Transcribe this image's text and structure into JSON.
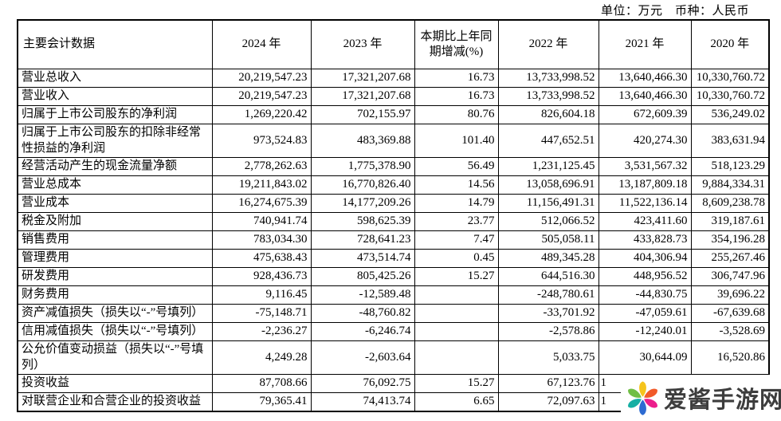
{
  "page": {
    "unit_line": "单位：万元　币种：人民币"
  },
  "table": {
    "header": [
      "主要会计数据",
      "2024 年",
      "2023 年",
      "本期比上年同期增减(%)",
      "2022 年",
      "2021 年",
      "2020 年"
    ],
    "rows": [
      {
        "label": "营业总收入",
        "values": [
          "20,219,547.23",
          "17,321,207.68",
          "16.73",
          "13,733,998.52",
          "13,640,466.30",
          "10,330,760.72"
        ]
      },
      {
        "label": "营业收入",
        "values": [
          "20,219,547.23",
          "17,321,207.68",
          "16.73",
          "13,733,998.52",
          "13,640,466.30",
          "10,330,760.72"
        ]
      },
      {
        "label": "归属于上市公司股东的净利润",
        "values": [
          "1,269,220.42",
          "702,155.97",
          "80.76",
          "826,604.18",
          "672,609.39",
          "536,249.02"
        ]
      },
      {
        "label": "归属于上市公司股东的扣除非经常性损益的净利润",
        "values": [
          "973,524.83",
          "483,369.88",
          "101.40",
          "447,652.51",
          "420,274.30",
          "383,631.94"
        ]
      },
      {
        "label": "经营活动产生的现金流量净额",
        "values": [
          "2,778,262.63",
          "1,775,378.90",
          "56.49",
          "1,231,125.45",
          "3,531,567.32",
          "518,123.29"
        ]
      },
      {
        "label": "营业总成本",
        "values": [
          "19,211,843.02",
          "16,770,826.40",
          "14.56",
          "13,058,696.91",
          "13,187,809.18",
          "9,884,334.31"
        ]
      },
      {
        "label": "营业成本",
        "values": [
          "16,274,675.39",
          "14,177,209.26",
          "14.79",
          "11,156,491.31",
          "11,522,136.14",
          "8,609,238.78"
        ]
      },
      {
        "label": "税金及附加",
        "values": [
          "740,941.74",
          "598,625.39",
          "23.77",
          "512,066.52",
          "423,411.60",
          "319,187.61"
        ]
      },
      {
        "label": "销售费用",
        "values": [
          "783,034.30",
          "728,641.23",
          "7.47",
          "505,058.11",
          "433,828.73",
          "354,196.28"
        ]
      },
      {
        "label": "管理费用",
        "values": [
          "475,638.43",
          "473,514.74",
          "0.45",
          "489,345.28",
          "404,306.94",
          "255,267.46"
        ]
      },
      {
        "label": "研发费用",
        "values": [
          "928,436.73",
          "805,425.26",
          "15.27",
          "644,516.30",
          "448,956.52",
          "306,747.96"
        ]
      },
      {
        "label": "财务费用",
        "values": [
          "9,116.45",
          "-12,589.48",
          "",
          "-248,780.61",
          "-44,830.75",
          "39,696.22"
        ]
      },
      {
        "label": "资产减值损失（损失以“-”号填列）",
        "values": [
          "-75,148.71",
          "-48,760.82",
          "",
          "-33,701.92",
          "-47,059.61",
          "-67,639.68"
        ]
      },
      {
        "label": "信用减值损失（损失以“-”号填列）",
        "values": [
          "-2,236.27",
          "-6,246.74",
          "",
          "-2,578.86",
          "-12,240.01",
          "-3,528.69"
        ]
      },
      {
        "label": "公允价值变动损益（损失以“-”号填列）",
        "values": [
          "4,249.28",
          "-2,603.64",
          "",
          "5,033.75",
          "30,644.09",
          "16,520.86"
        ]
      },
      {
        "label": "投资收益",
        "values": [
          "87,708.66",
          "76,092.75",
          "15.27",
          "67,123.76",
          "1",
          ""
        ],
        "partial_col": 4
      },
      {
        "label": "对联营企业和合营企业的投资收益",
        "values": [
          "79,365.41",
          "74,413.74",
          "6.65",
          "72,097.63",
          "1",
          ""
        ],
        "partial_col": 4
      }
    ]
  },
  "watermark": {
    "text": "爱酱手游网",
    "text_color": "#3d3d3d",
    "petal_colors": [
      "#F5C41D",
      "#F15A29",
      "#EC1E8C",
      "#2D6BD2",
      "#16AFA4",
      "#70BE44"
    ]
  }
}
